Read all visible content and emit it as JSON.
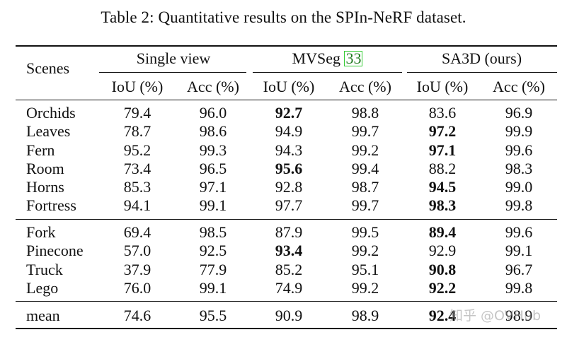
{
  "caption": "Table 2: Quantitative results on the SPIn-NeRF dataset.",
  "header": {
    "scenes_label": "Scenes",
    "groups": [
      {
        "label": "Single view",
        "cite": ""
      },
      {
        "label": "MVSeg ",
        "cite": "33"
      },
      {
        "label": "SA3D (ours)",
        "cite": ""
      }
    ],
    "metrics": [
      "IoU (%)",
      "Acc (%)",
      "IoU (%)",
      "Acc (%)",
      "IoU (%)",
      "Acc (%)"
    ]
  },
  "rows": [
    {
      "scene": "Orchids",
      "values": [
        "79.4",
        "96.0",
        "92.7",
        "98.8",
        "83.6",
        "96.9"
      ],
      "bold": [
        2
      ]
    },
    {
      "scene": "Leaves",
      "values": [
        "78.7",
        "98.6",
        "94.9",
        "99.7",
        "97.2",
        "99.9"
      ],
      "bold": [
        4
      ]
    },
    {
      "scene": "Fern",
      "values": [
        "95.2",
        "99.3",
        "94.3",
        "99.2",
        "97.1",
        "99.6"
      ],
      "bold": [
        4
      ]
    },
    {
      "scene": "Room",
      "values": [
        "73.4",
        "96.5",
        "95.6",
        "99.4",
        "88.2",
        "98.3"
      ],
      "bold": [
        2
      ]
    },
    {
      "scene": "Horns",
      "values": [
        "85.3",
        "97.1",
        "92.8",
        "98.7",
        "94.5",
        "99.0"
      ],
      "bold": [
        4
      ]
    },
    {
      "scene": "Fortress",
      "values": [
        "94.1",
        "99.1",
        "97.7",
        "99.7",
        "98.3",
        "99.8"
      ],
      "bold": [
        4
      ]
    },
    {
      "scene": "Fork",
      "values": [
        "69.4",
        "98.5",
        "87.9",
        "99.5",
        "89.4",
        "99.6"
      ],
      "bold": [
        4
      ]
    },
    {
      "scene": "Pinecone",
      "values": [
        "57.0",
        "92.5",
        "93.4",
        "99.2",
        "92.9",
        "99.1"
      ],
      "bold": [
        2
      ]
    },
    {
      "scene": "Truck",
      "values": [
        "37.9",
        "77.9",
        "85.2",
        "95.1",
        "90.8",
        "96.7"
      ],
      "bold": [
        4
      ]
    },
    {
      "scene": "Lego",
      "values": [
        "76.0",
        "99.1",
        "74.9",
        "99.2",
        "92.2",
        "99.8"
      ],
      "bold": [
        4
      ]
    },
    {
      "scene": "mean",
      "values": [
        "74.6",
        "95.5",
        "90.9",
        "98.9",
        "92.4",
        "98.9"
      ],
      "bold": [
        4
      ]
    }
  ],
  "watermark": "知乎 @OVHub"
}
